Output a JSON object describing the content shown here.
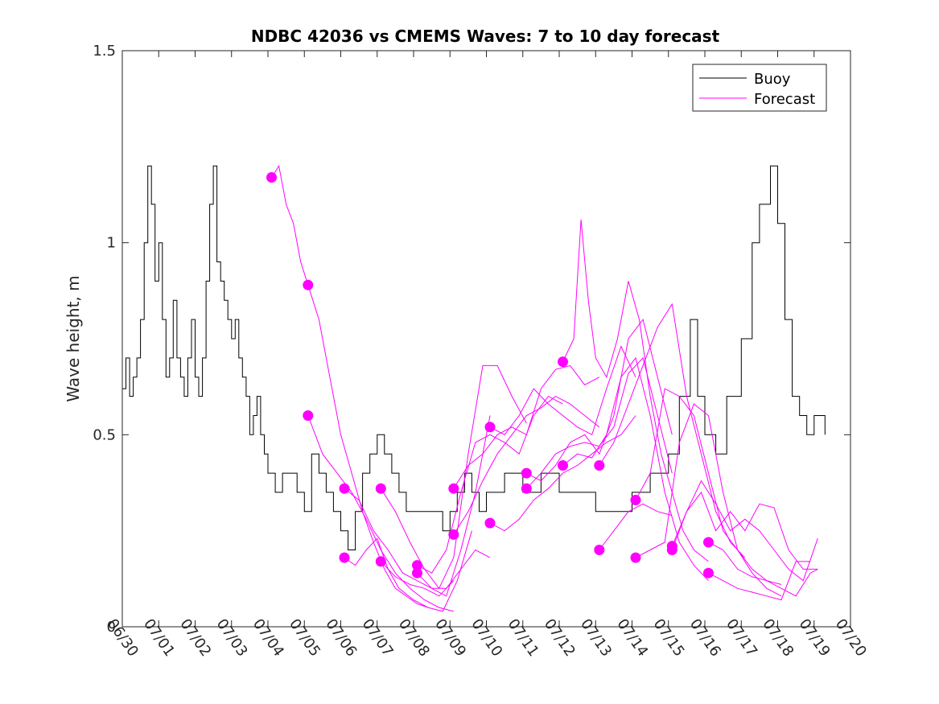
{
  "chart_data": {
    "type": "line",
    "title": "NDBC 42036 vs CMEMS Waves: 7 to 10 day forecast",
    "ylabel": "Wave height, m",
    "xlabel": "",
    "xlim": [
      0,
      20
    ],
    "ylim": [
      0,
      1.5
    ],
    "x_ticks": [
      0,
      1,
      2,
      3,
      4,
      5,
      6,
      7,
      8,
      9,
      10,
      11,
      12,
      13,
      14,
      15,
      16,
      17,
      18,
      19,
      20
    ],
    "x_tick_labels": [
      "06/30",
      "07/01",
      "07/02",
      "07/03",
      "07/04",
      "07/05",
      "07/06",
      "07/07",
      "07/08",
      "07/09",
      "07/10",
      "07/11",
      "07/12",
      "07/13",
      "07/14",
      "07/15",
      "07/16",
      "07/17",
      "07/18",
      "07/19",
      "07/20"
    ],
    "y_ticks": [
      0,
      0.5,
      1,
      1.5
    ],
    "y_tick_labels": [
      "0",
      "0.5",
      "1",
      "1.5"
    ],
    "grid": false,
    "legend_position": "top-right",
    "colors": {
      "buoy": "#000000",
      "forecast": "#ff00ff"
    },
    "series": [
      {
        "name": "Buoy",
        "step": true,
        "x": [
          0.0,
          0.1,
          0.2,
          0.3,
          0.4,
          0.5,
          0.6,
          0.7,
          0.8,
          0.9,
          1.0,
          1.1,
          1.2,
          1.3,
          1.4,
          1.5,
          1.6,
          1.7,
          1.8,
          1.9,
          2.0,
          2.1,
          2.2,
          2.3,
          2.4,
          2.5,
          2.6,
          2.7,
          2.8,
          2.9,
          3.0,
          3.1,
          3.2,
          3.3,
          3.4,
          3.5,
          3.6,
          3.7,
          3.8,
          3.9,
          4.0,
          4.2,
          4.4,
          4.6,
          4.8,
          5.0,
          5.2,
          5.4,
          5.6,
          5.8,
          6.0,
          6.2,
          6.4,
          6.6,
          6.8,
          7.0,
          7.2,
          7.4,
          7.6,
          7.8,
          8.0,
          8.4,
          8.8,
          9.0,
          9.2,
          9.4,
          9.6,
          9.8,
          10.0,
          10.5,
          11.0,
          11.5,
          12.0,
          13.0,
          14.0,
          14.5,
          15.0,
          15.3,
          15.6,
          15.8,
          16.0,
          16.3,
          16.6,
          17.0,
          17.3,
          17.5,
          17.8,
          18.0,
          18.2,
          18.4,
          18.6,
          18.8,
          19.0,
          19.3
        ],
        "y": [
          0.62,
          0.7,
          0.6,
          0.65,
          0.7,
          0.8,
          1.0,
          1.2,
          1.1,
          0.9,
          1.0,
          0.8,
          0.65,
          0.7,
          0.85,
          0.7,
          0.65,
          0.6,
          0.7,
          0.8,
          0.65,
          0.6,
          0.7,
          0.9,
          1.1,
          1.2,
          0.95,
          0.9,
          0.85,
          0.8,
          0.75,
          0.8,
          0.7,
          0.65,
          0.6,
          0.5,
          0.55,
          0.6,
          0.5,
          0.45,
          0.4,
          0.35,
          0.4,
          0.4,
          0.35,
          0.3,
          0.45,
          0.4,
          0.35,
          0.3,
          0.25,
          0.2,
          0.3,
          0.4,
          0.45,
          0.5,
          0.45,
          0.4,
          0.35,
          0.3,
          0.3,
          0.3,
          0.25,
          0.3,
          0.35,
          0.4,
          0.35,
          0.3,
          0.35,
          0.4,
          0.35,
          0.4,
          0.35,
          0.3,
          0.35,
          0.4,
          0.45,
          0.6,
          0.8,
          0.6,
          0.5,
          0.45,
          0.6,
          0.75,
          1.0,
          1.1,
          1.2,
          1.05,
          0.8,
          0.6,
          0.55,
          0.5,
          0.55,
          0.5
        ]
      },
      {
        "name": "Forecast",
        "lines": [
          {
            "x": [
              4.1,
              4.3,
              4.5,
              4.7,
              4.9,
              5.1
            ],
            "y": [
              1.17,
              1.2,
              1.1,
              1.05,
              0.95,
              0.89
            ]
          },
          {
            "x": [
              5.1,
              5.4,
              5.7,
              6.0,
              6.3,
              6.6,
              6.9,
              7.2,
              7.5,
              7.8,
              8.1,
              8.4
            ],
            "y": [
              0.89,
              0.8,
              0.65,
              0.5,
              0.4,
              0.3,
              0.22,
              0.15,
              0.1,
              0.08,
              0.06,
              0.05
            ]
          },
          {
            "x": [
              5.1,
              5.5,
              5.9,
              6.3,
              6.7,
              7.1,
              7.5,
              7.9,
              8.3,
              8.7,
              9.1
            ],
            "y": [
              0.55,
              0.45,
              0.4,
              0.35,
              0.28,
              0.2,
              0.14,
              0.1,
              0.07,
              0.05,
              0.04
            ]
          },
          {
            "x": [
              6.1,
              6.5,
              6.9,
              7.3,
              7.7,
              8.1,
              8.5,
              8.9,
              9.3,
              9.7,
              10.1
            ],
            "y": [
              0.36,
              0.33,
              0.25,
              0.2,
              0.14,
              0.12,
              0.1,
              0.08,
              0.2,
              0.35,
              0.55
            ]
          },
          {
            "x": [
              6.1,
              6.4,
              6.7,
              7.0,
              7.3,
              7.6,
              8.0,
              8.4,
              8.8,
              9.2,
              9.6
            ],
            "y": [
              0.18,
              0.16,
              0.2,
              0.23,
              0.15,
              0.1,
              0.07,
              0.05,
              0.04,
              0.12,
              0.25
            ]
          },
          {
            "x": [
              7.1,
              7.5,
              7.9,
              8.3,
              8.7,
              9.1,
              9.5,
              9.9,
              10.3,
              10.7,
              11.1
            ],
            "y": [
              0.36,
              0.3,
              0.22,
              0.15,
              0.1,
              0.18,
              0.45,
              0.68,
              0.68,
              0.6,
              0.53
            ]
          },
          {
            "x": [
              7.1,
              7.5,
              7.9,
              8.3,
              8.7,
              9.1
            ],
            "y": [
              0.17,
              0.13,
              0.11,
              0.1,
              0.08,
              0.12
            ]
          },
          {
            "x": [
              8.1,
              8.5,
              8.9,
              9.3,
              9.7,
              10.1,
              10.5,
              10.9,
              11.3,
              11.7,
              12.1
            ],
            "y": [
              0.16,
              0.14,
              0.2,
              0.35,
              0.48,
              0.5,
              0.48,
              0.45,
              0.55,
              0.6,
              0.58
            ]
          },
          {
            "x": [
              8.1,
              8.5,
              8.9,
              9.3,
              9.7,
              10.1
            ],
            "y": [
              0.14,
              0.1,
              0.1,
              0.15,
              0.2,
              0.18
            ]
          },
          {
            "x": [
              9.1,
              9.5,
              9.9,
              10.3,
              10.7,
              11.1,
              11.5,
              11.9,
              12.3,
              12.7,
              13.1
            ],
            "y": [
              0.36,
              0.42,
              0.45,
              0.5,
              0.52,
              0.5,
              0.62,
              0.67,
              0.68,
              0.63,
              0.65
            ]
          },
          {
            "x": [
              9.1,
              9.5,
              9.9,
              10.3,
              10.7,
              11.1,
              11.5,
              11.9,
              12.3,
              12.7,
              13.1
            ],
            "y": [
              0.24,
              0.3,
              0.38,
              0.45,
              0.5,
              0.55,
              0.57,
              0.6,
              0.58,
              0.55,
              0.52
            ]
          },
          {
            "x": [
              10.1,
              10.5,
              10.9,
              11.3,
              11.7,
              12.1,
              12.5,
              12.9,
              13.3,
              13.7,
              14.1
            ],
            "y": [
              0.52,
              0.5,
              0.55,
              0.62,
              0.58,
              0.55,
              0.52,
              0.5,
              0.62,
              0.73,
              0.65
            ]
          },
          {
            "x": [
              10.1,
              10.5,
              10.9,
              11.3,
              11.7,
              12.1,
              12.5,
              12.9,
              13.3,
              13.7,
              14.1
            ],
            "y": [
              0.27,
              0.25,
              0.28,
              0.33,
              0.36,
              0.4,
              0.42,
              0.45,
              0.48,
              0.5,
              0.55
            ]
          },
          {
            "x": [
              11.1,
              11.5,
              11.9,
              12.3,
              12.7,
              13.1,
              13.5,
              13.9,
              14.3,
              14.7,
              15.1
            ],
            "y": [
              0.4,
              0.38,
              0.42,
              0.48,
              0.5,
              0.45,
              0.55,
              0.75,
              0.8,
              0.65,
              0.5
            ]
          },
          {
            "x": [
              11.1,
              11.5,
              11.9,
              12.3,
              12.7,
              13.1,
              13.5,
              13.9,
              14.3,
              14.7,
              15.1
            ],
            "y": [
              0.36,
              0.4,
              0.45,
              0.47,
              0.48,
              0.47,
              0.52,
              0.66,
              0.7,
              0.55,
              0.4
            ]
          },
          {
            "x": [
              12.1,
              12.4,
              12.6,
              12.8,
              13.0,
              13.3,
              13.6,
              13.9,
              14.2,
              14.5,
              14.8,
              15.1,
              15.4,
              15.7,
              16.1
            ],
            "y": [
              0.69,
              0.75,
              1.06,
              0.85,
              0.7,
              0.65,
              0.75,
              0.9,
              0.8,
              0.6,
              0.45,
              0.35,
              0.25,
              0.2,
              0.17
            ]
          },
          {
            "x": [
              12.1,
              12.5,
              12.9,
              13.3,
              13.7,
              14.1,
              14.5,
              14.9,
              15.3,
              15.7,
              16.1
            ],
            "y": [
              0.42,
              0.45,
              0.44,
              0.5,
              0.65,
              0.7,
              0.55,
              0.35,
              0.22,
              0.16,
              0.12
            ]
          },
          {
            "x": [
              13.1,
              13.5,
              13.9,
              14.3,
              14.7,
              15.1,
              15.5,
              15.9,
              16.3,
              16.7,
              17.1
            ],
            "y": [
              0.42,
              0.48,
              0.58,
              0.68,
              0.78,
              0.84,
              0.6,
              0.45,
              0.3,
              0.22,
              0.18
            ]
          },
          {
            "x": [
              13.1,
              13.5,
              13.9,
              14.3,
              14.7,
              15.1
            ],
            "y": [
              0.2,
              0.25,
              0.3,
              0.32,
              0.3,
              0.29
            ]
          },
          {
            "x": [
              14.1,
              14.5,
              14.9,
              15.3,
              15.7,
              16.1,
              16.5,
              16.9,
              17.3,
              17.7,
              18.1
            ],
            "y": [
              0.33,
              0.4,
              0.62,
              0.6,
              0.55,
              0.4,
              0.25,
              0.2,
              0.15,
              0.12,
              0.11
            ]
          },
          {
            "x": [
              14.1,
              14.5,
              14.9,
              15.3,
              15.7,
              16.1,
              16.5,
              16.9,
              17.3,
              17.7,
              18.1
            ],
            "y": [
              0.18,
              0.2,
              0.22,
              0.48,
              0.58,
              0.55,
              0.35,
              0.2,
              0.14,
              0.1,
              0.08
            ]
          },
          {
            "x": [
              15.1,
              15.5,
              15.9,
              16.3,
              16.7,
              17.1,
              17.5,
              17.9,
              18.3,
              18.7,
              19.1
            ],
            "y": [
              0.21,
              0.3,
              0.38,
              0.32,
              0.25,
              0.28,
              0.25,
              0.2,
              0.15,
              0.12,
              0.23
            ]
          },
          {
            "x": [
              15.1,
              15.5,
              15.9,
              16.3,
              16.7,
              17.1,
              17.5,
              17.9,
              18.3,
              18.7,
              19.1
            ],
            "y": [
              0.2,
              0.3,
              0.35,
              0.25,
              0.3,
              0.25,
              0.32,
              0.31,
              0.2,
              0.15,
              0.15
            ]
          },
          {
            "x": [
              16.1,
              16.5,
              16.9,
              17.3,
              17.7,
              18.1,
              18.5,
              18.9,
              19.1
            ],
            "y": [
              0.22,
              0.2,
              0.15,
              0.13,
              0.12,
              0.1,
              0.08,
              0.14,
              0.15
            ]
          },
          {
            "x": [
              16.1,
              16.5,
              16.9,
              17.3,
              17.7,
              18.1,
              18.5,
              18.9
            ],
            "y": [
              0.14,
              0.12,
              0.1,
              0.09,
              0.08,
              0.07,
              0.17,
              0.17
            ]
          }
        ],
        "markers": {
          "x": [
            4.1,
            5.1,
            5.1,
            6.1,
            6.1,
            7.1,
            7.1,
            8.1,
            8.1,
            9.1,
            9.1,
            10.1,
            10.1,
            11.1,
            11.1,
            12.1,
            12.1,
            13.1,
            13.1,
            14.1,
            14.1,
            15.1,
            15.1,
            16.1,
            16.1
          ],
          "y": [
            1.17,
            0.89,
            0.55,
            0.36,
            0.18,
            0.36,
            0.17,
            0.16,
            0.14,
            0.36,
            0.24,
            0.52,
            0.27,
            0.4,
            0.36,
            0.69,
            0.42,
            0.42,
            0.2,
            0.33,
            0.18,
            0.21,
            0.2,
            0.22,
            0.14
          ]
        }
      }
    ]
  }
}
